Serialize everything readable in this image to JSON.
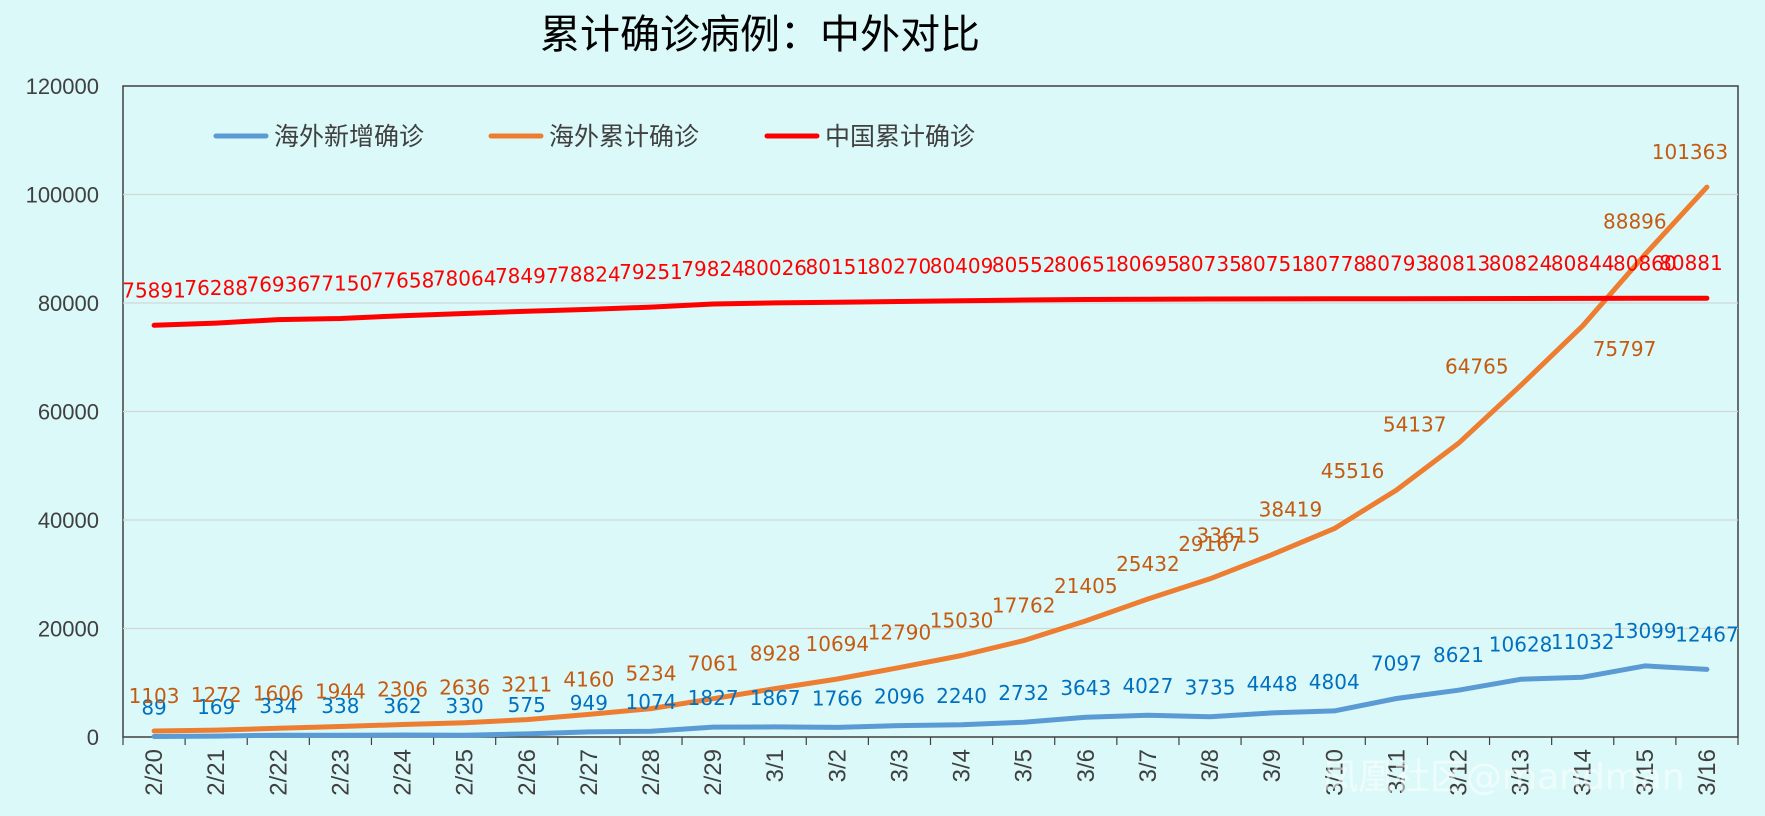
{
  "chart_data": {
    "type": "line",
    "title": "累计确诊病例：中外对比",
    "ylim": [
      0,
      120000
    ],
    "yticks": [
      0,
      20000,
      40000,
      60000,
      80000,
      100000,
      120000
    ],
    "grid": true,
    "legend_position": "top-left",
    "categories": [
      "2/20",
      "2/21",
      "2/22",
      "2/23",
      "2/24",
      "2/25",
      "2/26",
      "2/27",
      "2/28",
      "2/29",
      "3/1",
      "3/2",
      "3/3",
      "3/4",
      "3/5",
      "3/6",
      "3/7",
      "3/8",
      "3/9",
      "3/10",
      "3/11",
      "3/12",
      "3/13",
      "3/14",
      "3/15",
      "3/16"
    ],
    "series": [
      {
        "name": "海外新增确诊",
        "color": "#5b9bd5",
        "label_color": "#0070c0",
        "values": [
          89,
          169,
          334,
          338,
          362,
          330,
          575,
          949,
          1074,
          1827,
          1867,
          1766,
          2096,
          2240,
          2732,
          3643,
          4027,
          3735,
          4448,
          4804,
          7097,
          8621,
          10628,
          11032,
          13099,
          12467
        ]
      },
      {
        "name": "海外累计确诊",
        "color": "#ed7d31",
        "label_color": "#c55a11",
        "values": [
          1103,
          1272,
          1606,
          1944,
          2306,
          2636,
          3211,
          4160,
          5234,
          7061,
          8928,
          10694,
          12790,
          15030,
          17762,
          21405,
          25432,
          29167,
          33615,
          38419,
          45516,
          54137,
          64765,
          75797,
          88896,
          101363
        ]
      },
      {
        "name": "中国累计确诊",
        "color": "#ff0000",
        "label_color": "#ff0000",
        "values": [
          75891,
          76288,
          76936,
          77150,
          77658,
          78064,
          78497,
          78824,
          79251,
          79824,
          80026,
          80151,
          80270,
          80409,
          80552,
          80651,
          80695,
          80735,
          80751,
          80778,
          80793,
          80813,
          80824,
          80844,
          80860,
          80881
        ]
      }
    ]
  },
  "watermark": "凤凰社区@mandman"
}
